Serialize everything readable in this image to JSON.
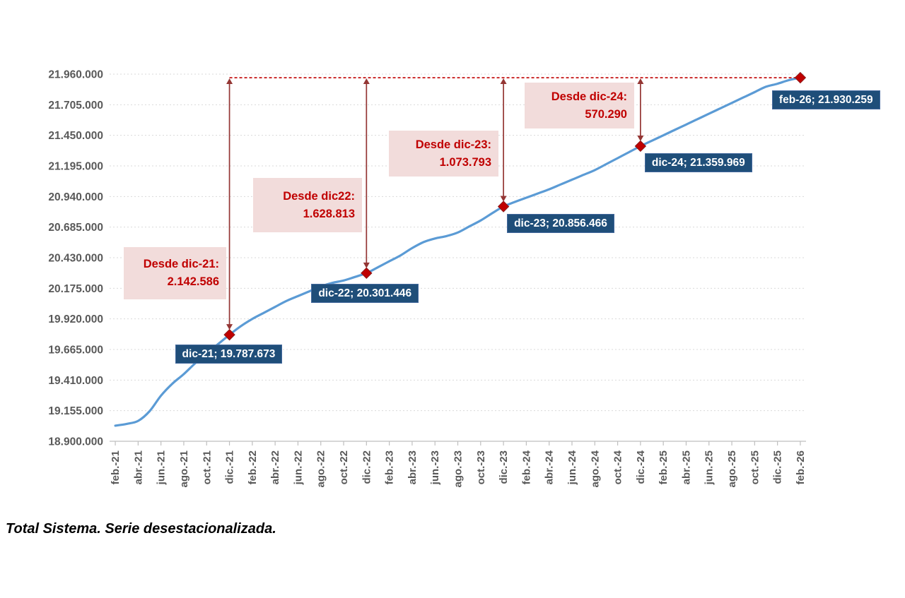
{
  "footer": {
    "caption": "Total Sistema. Serie desestacionalizada."
  },
  "colors": {
    "line": "#5B9BD5",
    "marker": "#C00000",
    "marker_stroke": "#8B1A1A",
    "reference_line": "#C00000",
    "arrow": "#943634",
    "grid": "#D9D9D9",
    "axis_line": "#BFBFBF",
    "tick_text": "#595959",
    "label_box_bg": "#1F4E79",
    "label_box_text": "#FFFFFF",
    "callout_bg": "#F2DCDB",
    "callout_text": "#C00000"
  },
  "chart_data": {
    "type": "line",
    "title": "",
    "xlabel": "",
    "ylabel": "",
    "grid": true,
    "legend": "none",
    "ylim": [
      18900000,
      21960000
    ],
    "y_step": 255000,
    "y_tick_labels": [
      "18.900.000",
      "19.155.000",
      "19.410.000",
      "19.665.000",
      "19.920.000",
      "20.175.000",
      "20.430.000",
      "20.685.000",
      "20.940.000",
      "21.195.000",
      "21.450.000",
      "21.705.000",
      "21.960.000"
    ],
    "x_tick_labels": [
      "feb.-21",
      "abr.-21",
      "jun.-21",
      "ago.-21",
      "oct.-21",
      "dic.-21",
      "feb.-22",
      "abr.-22",
      "jun.-22",
      "ago.-22",
      "oct.-22",
      "dic.-22",
      "feb.-23",
      "abr.-23",
      "jun.-23",
      "ago.-23",
      "oct.-23",
      "dic.-23",
      "feb.-24",
      "abr.-24",
      "jun.-24",
      "ago.-24",
      "oct.-24",
      "dic.-24",
      "feb.-25",
      "abr.-25",
      "jun.-25",
      "ago.-25",
      "oct.-25",
      "dic.-25",
      "feb.-26"
    ],
    "series": [
      {
        "name": "Total Sistema. Serie desestacionalizada",
        "x_start": "feb-21",
        "x_frequency": "monthly",
        "values": [
          19030000,
          19045000,
          19070000,
          19150000,
          19280000,
          19380000,
          19460000,
          19550000,
          19630000,
          19710000,
          19787673,
          19860000,
          19920000,
          19970000,
          20020000,
          20070000,
          20110000,
          20150000,
          20190000,
          20220000,
          20240000,
          20270000,
          20301446,
          20350000,
          20400000,
          20450000,
          20510000,
          20560000,
          20590000,
          20610000,
          20640000,
          20690000,
          20740000,
          20800000,
          20856466,
          20895000,
          20930000,
          20965000,
          21000000,
          21040000,
          21080000,
          21120000,
          21160000,
          21210000,
          21260000,
          21310000,
          21359969,
          21405000,
          21450000,
          21495000,
          21540000,
          21585000,
          21630000,
          21675000,
          21720000,
          21765000,
          21810000,
          21855000,
          21880000,
          21910000,
          21930259
        ]
      }
    ],
    "key_points": [
      {
        "label": "dic-21; 19.787.673",
        "month_index": 10,
        "value": 19787673
      },
      {
        "label": "dic-22; 20.301.446",
        "month_index": 22,
        "value": 20301446
      },
      {
        "label": "dic-23; 20.856.466",
        "month_index": 34,
        "value": 20856466
      },
      {
        "label": "dic-24; 21.359.969",
        "month_index": 46,
        "value": 21359969
      },
      {
        "label": "feb-26; 21.930.259",
        "month_index": 60,
        "value": 21930259
      }
    ],
    "annotations": [
      {
        "line1": "Desde dic-21:",
        "line2": "2.142.586",
        "month_index": 10
      },
      {
        "line1": "Desde dic22:",
        "line2": "1.628.813",
        "month_index": 22
      },
      {
        "line1": "Desde dic-23:",
        "line2": "1.073.793",
        "month_index": 34
      },
      {
        "line1": "Desde dic-24:",
        "line2": "570.290",
        "month_index": 46
      }
    ],
    "reference_line": {
      "value": 21930259,
      "style": "dashed",
      "from_month_index": 10,
      "to_month_index": 60
    }
  }
}
